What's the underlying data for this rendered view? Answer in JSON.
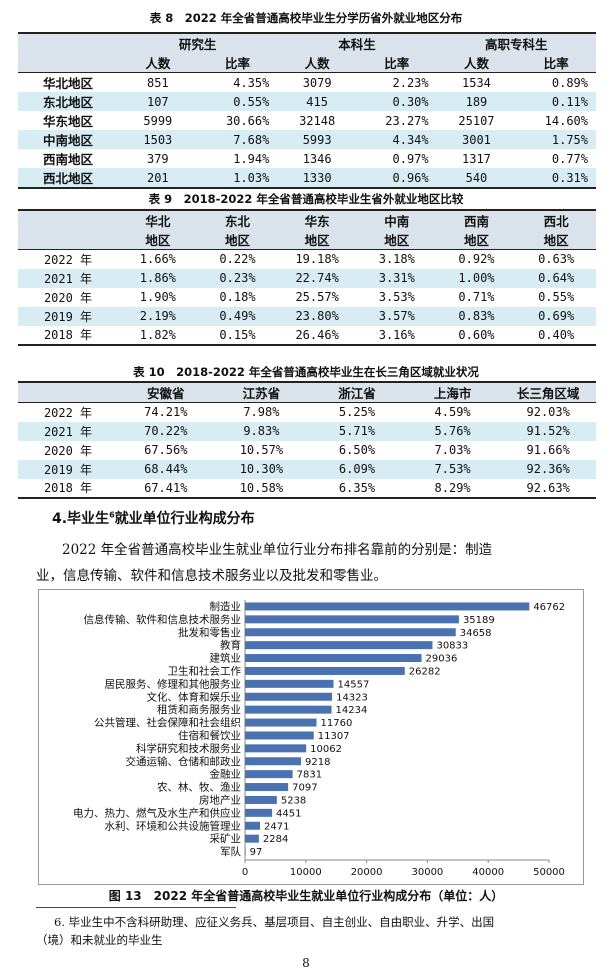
{
  "table8": {
    "caption": "表 8　2022 年全省普通高校毕业生分学历省外就业地区分布",
    "groups": [
      "研究生",
      "本科生",
      "高职专科生"
    ],
    "subheaders": [
      "人数",
      "比率",
      "人数",
      "比率",
      "人数",
      "比率"
    ],
    "rows": [
      {
        "label": "华北地区",
        "cells": [
          "851",
          "4.35%",
          "3079",
          "2.23%",
          "1534",
          "0.89%"
        ]
      },
      {
        "label": "东北地区",
        "cells": [
          "107",
          "0.55%",
          "415",
          "0.30%",
          "189",
          "0.11%"
        ]
      },
      {
        "label": "华东地区",
        "cells": [
          "5999",
          "30.66%",
          "32148",
          "23.27%",
          "25107",
          "14.60%"
        ]
      },
      {
        "label": "中南地区",
        "cells": [
          "1503",
          "7.68%",
          "5993",
          "4.34%",
          "3001",
          "1.75%"
        ]
      },
      {
        "label": "西南地区",
        "cells": [
          "379",
          "1.94%",
          "1346",
          "0.97%",
          "1317",
          "0.77%"
        ]
      },
      {
        "label": "西北地区",
        "cells": [
          "201",
          "1.03%",
          "1330",
          "0.96%",
          "540",
          "0.31%"
        ]
      }
    ]
  },
  "table9": {
    "caption": "表 9　2018-2022 年全省普通高校毕业生省外就业地区比较",
    "headers_line1": [
      "华北",
      "东北",
      "华东",
      "中南",
      "西南",
      "西北"
    ],
    "headers_line2": [
      "地区",
      "地区",
      "地区",
      "地区",
      "地区",
      "地区"
    ],
    "rows": [
      {
        "label": "2022 年",
        "cells": [
          "1.66%",
          "0.22%",
          "19.18%",
          "3.18%",
          "0.92%",
          "0.63%"
        ]
      },
      {
        "label": "2021 年",
        "cells": [
          "1.86%",
          "0.23%",
          "22.74%",
          "3.31%",
          "1.00%",
          "0.64%"
        ]
      },
      {
        "label": "2020 年",
        "cells": [
          "1.90%",
          "0.18%",
          "25.57%",
          "3.53%",
          "0.71%",
          "0.55%"
        ]
      },
      {
        "label": "2019 年",
        "cells": [
          "2.19%",
          "0.49%",
          "23.80%",
          "3.57%",
          "0.83%",
          "0.69%"
        ]
      },
      {
        "label": "2018 年",
        "cells": [
          "1.82%",
          "0.15%",
          "26.46%",
          "3.16%",
          "0.60%",
          "0.40%"
        ]
      }
    ]
  },
  "table10": {
    "caption": "表 10　2018-2022 年全省普通高校毕业生在长三角区域就业状况",
    "headers": [
      "安徽省",
      "江苏省",
      "浙江省",
      "上海市",
      "长三角区域"
    ],
    "rows": [
      {
        "label": "2022 年",
        "cells": [
          "74.21%",
          "7.98%",
          "5.25%",
          "4.59%",
          "92.03%"
        ]
      },
      {
        "label": "2021 年",
        "cells": [
          "70.22%",
          "9.83%",
          "5.71%",
          "5.76%",
          "91.52%"
        ]
      },
      {
        "label": "2020 年",
        "cells": [
          "67.56%",
          "10.57%",
          "6.50%",
          "7.03%",
          "91.66%"
        ]
      },
      {
        "label": "2019 年",
        "cells": [
          "68.44%",
          "10.30%",
          "6.09%",
          "7.53%",
          "92.36%"
        ]
      },
      {
        "label": "2018 年",
        "cells": [
          "67.41%",
          "10.58%",
          "6.35%",
          "8.29%",
          "92.63%"
        ]
      }
    ]
  },
  "section": {
    "heading_pre": "4.毕业生",
    "heading_sup": "6",
    "heading_post": "就业单位行业构成分布",
    "para_line1": "2022 年全省普通高校毕业生就业单位行业分布排名靠前的分别是：制造",
    "para_line2": "业，信息传输、软件和信息技术服务业以及批发和零售业。"
  },
  "chart_data": {
    "type": "bar",
    "orientation": "horizontal",
    "title": "图 13　2022 年全省普通高校毕业生就业单位行业构成分布（单位：人）",
    "categories": [
      "制造业",
      "信息传输、软件和信息技术服务业",
      "批发和零售业",
      "教育",
      "建筑业",
      "卫生和社会工作",
      "居民服务、修理和其他服务业",
      "文化、体育和娱乐业",
      "租赁和商务服务业",
      "公共管理、社会保障和社会组织",
      "住宿和餐饮业",
      "科学研究和技术服务业",
      "交通运输、仓储和邮政业",
      "金融业",
      "农、林、牧、渔业",
      "房地产业",
      "电力、热力、燃气及水生产和供应业",
      "水利、环境和公共设施管理业",
      "采矿业",
      "军队"
    ],
    "values": [
      46762,
      35189,
      34658,
      30833,
      29036,
      26282,
      14557,
      14323,
      14234,
      11760,
      11307,
      10062,
      9218,
      7831,
      7097,
      5238,
      4451,
      2471,
      2284,
      97
    ],
    "xlim": [
      0,
      50000
    ],
    "xticks": [
      "0",
      "10000",
      "20000",
      "30000",
      "40000",
      "50000"
    ],
    "bar_color": "#4a72b0",
    "grid": false
  },
  "footnote": {
    "line1": "6. 毕业生中不含科研助理、应征义务兵、基层项目、自主创业、自由职业、升学、出国",
    "line2": "（境）和未就业的毕业生"
  },
  "page_number": "8"
}
